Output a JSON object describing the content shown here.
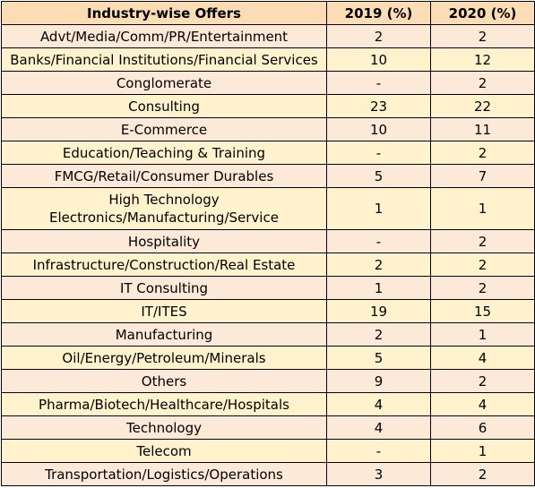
{
  "table": {
    "headers": [
      "Industry-wise Offers",
      "2019 (%)",
      "2020 (%)"
    ],
    "rows": [
      {
        "industry": "Advt/Media/Comm/PR/Entertainment",
        "y2019": "2",
        "y2020": "2"
      },
      {
        "industry": "Banks/Financial Institutions/Financial Services",
        "y2019": "10",
        "y2020": "12"
      },
      {
        "industry": "Conglomerate",
        "y2019": "-",
        "y2020": "2"
      },
      {
        "industry": "Consulting",
        "y2019": "23",
        "y2020": "22"
      },
      {
        "industry": "E-Commerce",
        "y2019": "10",
        "y2020": "11"
      },
      {
        "industry": "Education/Teaching & Training",
        "y2019": "-",
        "y2020": "2"
      },
      {
        "industry": "FMCG/Retail/Consumer Durables",
        "y2019": "5",
        "y2020": "7"
      },
      {
        "industry": "High Technology Electronics/Manufacturing/Service",
        "y2019": "1",
        "y2020": "1"
      },
      {
        "industry": "Hospitality",
        "y2019": "-",
        "y2020": "2"
      },
      {
        "industry": "Infrastructure/Construction/Real Estate",
        "y2019": "2",
        "y2020": "2"
      },
      {
        "industry": "IT Consulting",
        "y2019": "1",
        "y2020": "2"
      },
      {
        "industry": "IT/ITES",
        "y2019": "19",
        "y2020": "15"
      },
      {
        "industry": "Manufacturing",
        "y2019": "2",
        "y2020": "1"
      },
      {
        "industry": "Oil/Energy/Petroleum/Minerals",
        "y2019": "5",
        "y2020": "4"
      },
      {
        "industry": "Others",
        "y2019": "9",
        "y2020": "2"
      },
      {
        "industry": "Pharma/Biotech/Healthcare/Hospitals",
        "y2019": "4",
        "y2020": "4"
      },
      {
        "industry": "Technology",
        "y2019": "4",
        "y2020": "6"
      },
      {
        "industry": "Telecom",
        "y2019": "-",
        "y2020": "1"
      },
      {
        "industry": "Transportation/Logistics/Operations",
        "y2019": "3",
        "y2020": "2"
      }
    ]
  },
  "colors": {
    "header_bg": "#fbdcb5",
    "odd_row_bg": "#fde9d8",
    "even_row_bg": "#fff2cc",
    "border": "#000000"
  }
}
